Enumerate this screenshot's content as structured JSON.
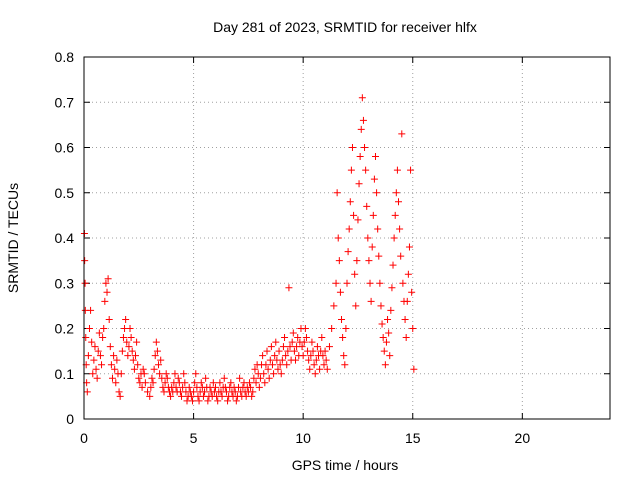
{
  "chart_data": {
    "type": "scatter",
    "title": "Day 281 of 2023, SRMTID for receiver hlfx",
    "xlabel": "GPS time / hours",
    "ylabel": "SRMTID / TECUs",
    "xlim": [
      0,
      24
    ],
    "ylim": [
      0,
      0.8
    ],
    "xticks": [
      0,
      5,
      10,
      15,
      20
    ],
    "yticks": [
      0,
      0.1,
      0.2,
      0.3,
      0.4,
      0.5,
      0.6,
      0.7,
      0.8
    ],
    "xtick_labels": [
      "0",
      "5",
      "10",
      "15",
      "20"
    ],
    "ytick_labels": [
      "0",
      "0.1",
      "0.2",
      "0.3",
      "0.4",
      "0.5",
      "0.6",
      "0.7",
      "0.8"
    ],
    "grid": true,
    "marker": "+",
    "color": "#ff0000",
    "series": [
      {
        "name": "SRMTID",
        "points": [
          [
            0.02,
            0.41
          ],
          [
            0.03,
            0.35
          ],
          [
            0.05,
            0.3
          ],
          [
            0.06,
            0.24
          ],
          [
            0.08,
            0.18
          ],
          [
            0.1,
            0.12
          ],
          [
            0.12,
            0.08
          ],
          [
            0.15,
            0.06
          ],
          [
            0.2,
            0.14
          ],
          [
            0.25,
            0.2
          ],
          [
            0.3,
            0.24
          ],
          [
            0.35,
            0.17
          ],
          [
            0.4,
            0.1
          ],
          [
            0.45,
            0.13
          ],
          [
            0.5,
            0.16
          ],
          [
            0.55,
            0.11
          ],
          [
            0.6,
            0.09
          ],
          [
            0.65,
            0.15
          ],
          [
            0.7,
            0.19
          ],
          [
            0.75,
            0.14
          ],
          [
            0.8,
            0.12
          ],
          [
            0.85,
            0.18
          ],
          [
            0.9,
            0.2
          ],
          [
            0.95,
            0.26
          ],
          [
            1.0,
            0.3
          ],
          [
            1.05,
            0.28
          ],
          [
            1.1,
            0.31
          ],
          [
            1.15,
            0.22
          ],
          [
            1.2,
            0.16
          ],
          [
            1.25,
            0.12
          ],
          [
            1.3,
            0.09
          ],
          [
            1.35,
            0.14
          ],
          [
            1.4,
            0.11
          ],
          [
            1.45,
            0.08
          ],
          [
            1.5,
            0.13
          ],
          [
            1.55,
            0.1
          ],
          [
            1.6,
            0.06
          ],
          [
            1.65,
            0.05
          ],
          [
            1.7,
            0.1
          ],
          [
            1.75,
            0.15
          ],
          [
            1.8,
            0.18
          ],
          [
            1.85,
            0.2
          ],
          [
            1.9,
            0.22
          ],
          [
            1.95,
            0.17
          ],
          [
            2.0,
            0.14
          ],
          [
            2.05,
            0.16
          ],
          [
            2.1,
            0.2
          ],
          [
            2.15,
            0.18
          ],
          [
            2.2,
            0.15
          ],
          [
            2.25,
            0.13
          ],
          [
            2.3,
            0.11
          ],
          [
            2.35,
            0.14
          ],
          [
            2.4,
            0.17
          ],
          [
            2.45,
            0.12
          ],
          [
            2.5,
            0.09
          ],
          [
            2.55,
            0.08
          ],
          [
            2.6,
            0.1
          ],
          [
            2.65,
            0.07
          ],
          [
            2.7,
            0.11
          ],
          [
            2.75,
            0.1
          ],
          [
            2.8,
            0.08
          ],
          [
            2.9,
            0.06
          ],
          [
            3.0,
            0.05
          ],
          [
            3.05,
            0.07
          ],
          [
            3.1,
            0.09
          ],
          [
            3.15,
            0.08
          ],
          [
            3.2,
            0.11
          ],
          [
            3.25,
            0.14
          ],
          [
            3.3,
            0.17
          ],
          [
            3.35,
            0.15
          ],
          [
            3.4,
            0.12
          ],
          [
            3.45,
            0.1
          ],
          [
            3.5,
            0.13
          ],
          [
            3.55,
            0.09
          ],
          [
            3.6,
            0.07
          ],
          [
            3.65,
            0.06
          ],
          [
            3.7,
            0.08
          ],
          [
            3.75,
            0.1
          ],
          [
            3.8,
            0.09
          ],
          [
            3.85,
            0.07
          ],
          [
            3.9,
            0.06
          ],
          [
            3.95,
            0.05
          ],
          [
            4.0,
            0.07
          ],
          [
            4.05,
            0.06
          ],
          [
            4.1,
            0.08
          ],
          [
            4.15,
            0.1
          ],
          [
            4.2,
            0.07
          ],
          [
            4.25,
            0.06
          ],
          [
            4.3,
            0.09
          ],
          [
            4.35,
            0.08
          ],
          [
            4.4,
            0.06
          ],
          [
            4.45,
            0.05
          ],
          [
            4.5,
            0.07
          ],
          [
            4.55,
            0.1
          ],
          [
            4.6,
            0.08
          ],
          [
            4.65,
            0.06
          ],
          [
            4.7,
            0.04
          ],
          [
            4.75,
            0.05
          ],
          [
            4.8,
            0.07
          ],
          [
            4.85,
            0.06
          ],
          [
            4.9,
            0.05
          ],
          [
            4.95,
            0.04
          ],
          [
            5.0,
            0.06
          ],
          [
            5.05,
            0.08
          ],
          [
            5.1,
            0.1
          ],
          [
            5.15,
            0.07
          ],
          [
            5.2,
            0.05
          ],
          [
            5.25,
            0.04
          ],
          [
            5.3,
            0.06
          ],
          [
            5.35,
            0.08
          ],
          [
            5.4,
            0.07
          ],
          [
            5.45,
            0.05
          ],
          [
            5.5,
            0.06
          ],
          [
            5.55,
            0.09
          ],
          [
            5.6,
            0.07
          ],
          [
            5.65,
            0.04
          ],
          [
            5.7,
            0.05
          ],
          [
            5.75,
            0.07
          ],
          [
            5.8,
            0.06
          ],
          [
            5.85,
            0.05
          ],
          [
            5.9,
            0.08
          ],
          [
            5.95,
            0.06
          ],
          [
            6.0,
            0.07
          ],
          [
            6.05,
            0.05
          ],
          [
            6.1,
            0.04
          ],
          [
            6.15,
            0.06
          ],
          [
            6.2,
            0.08
          ],
          [
            6.25,
            0.06
          ],
          [
            6.3,
            0.05
          ],
          [
            6.35,
            0.07
          ],
          [
            6.4,
            0.09
          ],
          [
            6.45,
            0.07
          ],
          [
            6.5,
            0.06
          ],
          [
            6.55,
            0.04
          ],
          [
            6.6,
            0.05
          ],
          [
            6.65,
            0.07
          ],
          [
            6.7,
            0.08
          ],
          [
            6.75,
            0.06
          ],
          [
            6.8,
            0.05
          ],
          [
            6.85,
            0.07
          ],
          [
            6.9,
            0.06
          ],
          [
            6.95,
            0.04
          ],
          [
            7.0,
            0.05
          ],
          [
            7.05,
            0.07
          ],
          [
            7.1,
            0.09
          ],
          [
            7.15,
            0.06
          ],
          [
            7.2,
            0.05
          ],
          [
            7.25,
            0.07
          ],
          [
            7.3,
            0.08
          ],
          [
            7.35,
            0.06
          ],
          [
            7.4,
            0.05
          ],
          [
            7.45,
            0.07
          ],
          [
            7.5,
            0.06
          ],
          [
            7.55,
            0.08
          ],
          [
            7.6,
            0.07
          ],
          [
            7.65,
            0.05
          ],
          [
            7.7,
            0.06
          ],
          [
            7.75,
            0.09
          ],
          [
            7.8,
            0.11
          ],
          [
            7.85,
            0.08
          ],
          [
            7.9,
            0.12
          ],
          [
            7.95,
            0.1
          ],
          [
            8.0,
            0.07
          ],
          [
            8.05,
            0.09
          ],
          [
            8.1,
            0.12
          ],
          [
            8.15,
            0.14
          ],
          [
            8.2,
            0.1
          ],
          [
            8.25,
            0.08
          ],
          [
            8.3,
            0.12
          ],
          [
            8.35,
            0.15
          ],
          [
            8.4,
            0.11
          ],
          [
            8.45,
            0.09
          ],
          [
            8.5,
            0.13
          ],
          [
            8.55,
            0.16
          ],
          [
            8.6,
            0.12
          ],
          [
            8.65,
            0.1
          ],
          [
            8.7,
            0.14
          ],
          [
            8.75,
            0.17
          ],
          [
            8.8,
            0.13
          ],
          [
            8.85,
            0.11
          ],
          [
            8.9,
            0.15
          ],
          [
            8.95,
            0.12
          ],
          [
            9.0,
            0.1
          ],
          [
            9.05,
            0.13
          ],
          [
            9.1,
            0.16
          ],
          [
            9.15,
            0.18
          ],
          [
            9.2,
            0.14
          ],
          [
            9.25,
            0.12
          ],
          [
            9.3,
            0.15
          ],
          [
            9.35,
            0.29
          ],
          [
            9.4,
            0.16
          ],
          [
            9.45,
            0.13
          ],
          [
            9.5,
            0.17
          ],
          [
            9.55,
            0.19
          ],
          [
            9.6,
            0.15
          ],
          [
            9.65,
            0.13
          ],
          [
            9.7,
            0.16
          ],
          [
            9.75,
            0.18
          ],
          [
            9.8,
            0.14
          ],
          [
            9.85,
            0.17
          ],
          [
            9.9,
            0.2
          ],
          [
            9.95,
            0.16
          ],
          [
            10.0,
            0.14
          ],
          [
            10.05,
            0.17
          ],
          [
            10.1,
            0.2
          ],
          [
            10.15,
            0.18
          ],
          [
            10.2,
            0.15
          ],
          [
            10.25,
            0.13
          ],
          [
            10.3,
            0.11
          ],
          [
            10.35,
            0.14
          ],
          [
            10.4,
            0.17
          ],
          [
            10.45,
            0.15
          ],
          [
            10.5,
            0.12
          ],
          [
            10.55,
            0.1
          ],
          [
            10.6,
            0.13
          ],
          [
            10.65,
            0.16
          ],
          [
            10.7,
            0.14
          ],
          [
            10.75,
            0.11
          ],
          [
            10.8,
            0.15
          ],
          [
            10.85,
            0.18
          ],
          [
            10.9,
            0.14
          ],
          [
            10.95,
            0.12
          ],
          [
            11.0,
            0.15
          ],
          [
            11.05,
            0.13
          ],
          [
            11.1,
            0.11
          ],
          [
            11.2,
            0.16
          ],
          [
            11.3,
            0.2
          ],
          [
            11.4,
            0.25
          ],
          [
            11.5,
            0.3
          ],
          [
            11.55,
            0.5
          ],
          [
            11.6,
            0.4
          ],
          [
            11.65,
            0.35
          ],
          [
            11.7,
            0.28
          ],
          [
            11.75,
            0.22
          ],
          [
            11.8,
            0.18
          ],
          [
            11.85,
            0.14
          ],
          [
            11.9,
            0.12
          ],
          [
            11.95,
            0.2
          ],
          [
            12.0,
            0.3
          ],
          [
            12.05,
            0.37
          ],
          [
            12.1,
            0.42
          ],
          [
            12.15,
            0.48
          ],
          [
            12.2,
            0.55
          ],
          [
            12.25,
            0.6
          ],
          [
            12.3,
            0.45
          ],
          [
            12.35,
            0.32
          ],
          [
            12.4,
            0.25
          ],
          [
            12.45,
            0.35
          ],
          [
            12.5,
            0.44
          ],
          [
            12.55,
            0.52
          ],
          [
            12.6,
            0.58
          ],
          [
            12.65,
            0.64
          ],
          [
            12.7,
            0.71
          ],
          [
            12.75,
            0.66
          ],
          [
            12.8,
            0.6
          ],
          [
            12.85,
            0.55
          ],
          [
            12.9,
            0.47
          ],
          [
            12.95,
            0.4
          ],
          [
            13.0,
            0.35
          ],
          [
            13.05,
            0.3
          ],
          [
            13.1,
            0.26
          ],
          [
            13.15,
            0.38
          ],
          [
            13.2,
            0.45
          ],
          [
            13.25,
            0.53
          ],
          [
            13.3,
            0.58
          ],
          [
            13.35,
            0.5
          ],
          [
            13.4,
            0.42
          ],
          [
            13.45,
            0.36
          ],
          [
            13.5,
            0.3
          ],
          [
            13.55,
            0.25
          ],
          [
            13.6,
            0.21
          ],
          [
            13.65,
            0.18
          ],
          [
            13.7,
            0.15
          ],
          [
            13.75,
            0.12
          ],
          [
            13.8,
            0.17
          ],
          [
            13.85,
            0.22
          ],
          [
            13.9,
            0.19
          ],
          [
            13.95,
            0.14
          ],
          [
            14.0,
            0.24
          ],
          [
            14.05,
            0.29
          ],
          [
            14.1,
            0.34
          ],
          [
            14.15,
            0.4
          ],
          [
            14.2,
            0.45
          ],
          [
            14.25,
            0.5
          ],
          [
            14.3,
            0.55
          ],
          [
            14.35,
            0.48
          ],
          [
            14.4,
            0.42
          ],
          [
            14.45,
            0.36
          ],
          [
            14.5,
            0.63
          ],
          [
            14.55,
            0.3
          ],
          [
            14.6,
            0.26
          ],
          [
            14.65,
            0.22
          ],
          [
            14.7,
            0.18
          ],
          [
            14.75,
            0.26
          ],
          [
            14.8,
            0.32
          ],
          [
            14.85,
            0.38
          ],
          [
            14.9,
            0.55
          ],
          [
            14.95,
            0.28
          ],
          [
            15.0,
            0.2
          ],
          [
            15.05,
            0.11
          ]
        ]
      }
    ]
  }
}
